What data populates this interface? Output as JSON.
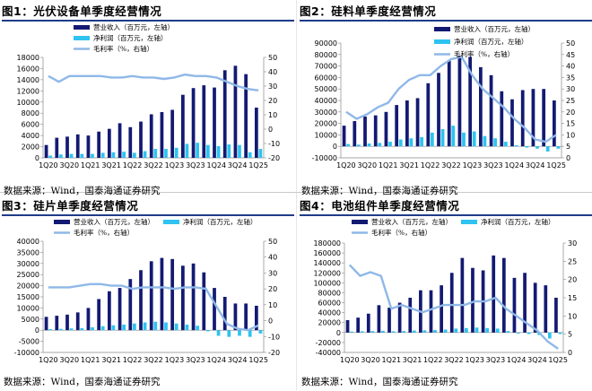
{
  "source_label": "数据来源：Wind，国泰海通证券研究",
  "colors": {
    "revenue": "#131a72",
    "profit": "#2ec3f0",
    "margin": "#8fb8e8"
  },
  "legend": {
    "revenue": "营业收入（百万元，左轴）",
    "profit": "净利润（百万元，左轴）",
    "margin": "毛利率（%，右轴）",
    "margin_short": "毛利率（%，右轴）"
  },
  "chart_data": [
    {
      "type": "bar",
      "title": "图1：光伏设备单季度经营情况",
      "legend_position": "top",
      "x_tick_labels": [
        "1Q20",
        "3Q20",
        "1Q21",
        "3Q21",
        "1Q22",
        "3Q22",
        "1Q23",
        "3Q23",
        "1Q24",
        "3Q24",
        "1Q25"
      ],
      "categories": [
        "1Q20",
        "2Q20",
        "3Q20",
        "4Q20",
        "1Q21",
        "2Q21",
        "3Q21",
        "4Q21",
        "1Q22",
        "2Q22",
        "3Q22",
        "4Q22",
        "1Q23",
        "2Q23",
        "3Q23",
        "4Q23",
        "1Q24",
        "2Q24",
        "3Q24",
        "4Q24",
        "1Q25"
      ],
      "ylim_left": [
        0,
        18000
      ],
      "yticks_left": [
        0,
        2000,
        4000,
        6000,
        8000,
        10000,
        12000,
        14000,
        16000,
        18000
      ],
      "ylim_right": [
        -20,
        50
      ],
      "yticks_right": [
        -20,
        -10,
        0,
        10,
        20,
        30,
        40,
        50
      ],
      "series": [
        {
          "name": "营业收入（百万元，左轴）",
          "axis": "left",
          "kind": "bar",
          "values": [
            2300,
            3600,
            3800,
            4200,
            4000,
            4700,
            5200,
            6200,
            5500,
            6500,
            7800,
            8200,
            8600,
            11300,
            12500,
            13000,
            12600,
            15700,
            16500,
            15000,
            9000
          ]
        },
        {
          "name": "净利润（百万元，左轴）",
          "axis": "left",
          "kind": "bar",
          "values": [
            400,
            600,
            700,
            700,
            700,
            900,
            1000,
            1100,
            900,
            1200,
            1600,
            1600,
            1800,
            2500,
            2700,
            2300,
            2100,
            2400,
            2300,
            1000,
            1600
          ]
        },
        {
          "name": "毛利率（%，右轴）",
          "axis": "right",
          "kind": "line",
          "values": [
            37,
            33,
            37,
            37,
            37,
            37,
            36,
            36,
            37,
            36,
            36,
            35,
            36,
            38,
            37,
            37,
            36,
            33,
            30,
            28,
            27
          ]
        }
      ]
    },
    {
      "type": "bar",
      "title": "图2：硅料单季度经营情况",
      "legend_position": "top-right",
      "x_tick_labels": [
        "1Q20",
        "3Q20",
        "1Q21",
        "3Q21",
        "1Q22",
        "3Q22",
        "1Q23",
        "3Q23",
        "1Q24",
        "3Q24",
        "1Q25"
      ],
      "categories": [
        "1Q20",
        "2Q20",
        "3Q20",
        "4Q20",
        "1Q21",
        "2Q21",
        "3Q21",
        "4Q21",
        "1Q22",
        "2Q22",
        "3Q22",
        "4Q22",
        "1Q23",
        "2Q23",
        "3Q23",
        "4Q23",
        "1Q24",
        "2Q24",
        "3Q24",
        "4Q24",
        "1Q25"
      ],
      "ylim_left": [
        -10000,
        90000
      ],
      "yticks_left": [
        -10000,
        0,
        10000,
        20000,
        30000,
        40000,
        50000,
        60000,
        70000,
        80000,
        90000
      ],
      "ylim_right": [
        0,
        50
      ],
      "yticks_right": [
        0,
        5,
        10,
        15,
        20,
        25,
        30,
        35,
        40,
        45,
        50
      ],
      "series": [
        {
          "name": "营业收入（百万元，左轴）",
          "axis": "left",
          "kind": "bar",
          "values": [
            18000,
            22000,
            26000,
            27000,
            30000,
            36000,
            40000,
            42000,
            55000,
            64000,
            75000,
            79000,
            78000,
            69000,
            62000,
            48000,
            41000,
            49000,
            50000,
            50000,
            40000
          ]
        },
        {
          "name": "净利润（百万元，左轴）",
          "axis": "left",
          "kind": "bar",
          "values": [
            2000,
            1500,
            2500,
            3000,
            4000,
            6000,
            7000,
            8000,
            12000,
            15000,
            18000,
            12000,
            13000,
            9000,
            7000,
            4000,
            1000,
            -1000,
            -2000,
            -4500,
            -2000
          ]
        },
        {
          "name": "毛利率（%，右轴）",
          "axis": "right",
          "kind": "line",
          "values": [
            20,
            17,
            19,
            22,
            24,
            30,
            34,
            36,
            36,
            40,
            43,
            44,
            36,
            30,
            26,
            22,
            17,
            13,
            8,
            7,
            10
          ]
        }
      ]
    },
    {
      "type": "bar",
      "title": "图3：硅片单季度经营情况",
      "legend_position": "top",
      "x_tick_labels": [
        "1Q20",
        "3Q20",
        "1Q21",
        "3Q21",
        "1Q22",
        "3Q22",
        "1Q23",
        "3Q23",
        "1Q24",
        "3Q24",
        "1Q25"
      ],
      "categories": [
        "1Q20",
        "2Q20",
        "3Q20",
        "4Q20",
        "1Q21",
        "2Q21",
        "3Q21",
        "4Q21",
        "1Q22",
        "2Q22",
        "3Q22",
        "4Q22",
        "1Q23",
        "2Q23",
        "3Q23",
        "4Q23",
        "1Q24",
        "2Q24",
        "3Q24",
        "4Q24",
        "1Q25"
      ],
      "ylim_left": [
        -10000,
        40000
      ],
      "yticks_left": [
        -10000,
        -5000,
        0,
        5000,
        10000,
        15000,
        20000,
        25000,
        30000,
        35000,
        40000
      ],
      "ylim_right": [
        -20,
        50
      ],
      "yticks_right": [
        -20,
        -10,
        0,
        10,
        20,
        30,
        40,
        50
      ],
      "series": [
        {
          "name": "营业收入（百万元，左轴）",
          "axis": "left",
          "kind": "bar",
          "values": [
            6000,
            6500,
            7000,
            8000,
            10000,
            14000,
            17500,
            19000,
            23000,
            27000,
            31000,
            32500,
            32000,
            29000,
            30000,
            26000,
            19000,
            15000,
            12000,
            12000,
            11000
          ]
        },
        {
          "name": "净利润（百万元，左轴）",
          "axis": "left",
          "kind": "bar",
          "values": [
            500,
            600,
            800,
            900,
            1300,
            1800,
            2200,
            2500,
            3000,
            3500,
            3800,
            3500,
            3000,
            2500,
            2000,
            -500,
            -2500,
            -3000,
            -2500,
            -3000,
            -1500
          ]
        },
        {
          "name": "毛利率（%，右轴）",
          "axis": "right",
          "kind": "line",
          "values": [
            21,
            21,
            21,
            22,
            23,
            23,
            22,
            22,
            20,
            21,
            21,
            21,
            20,
            21,
            21,
            20,
            9,
            -2,
            -5,
            -6,
            -3
          ]
        }
      ]
    },
    {
      "type": "bar",
      "title": "图4：电池组件单季度经营情况",
      "legend_position": "top",
      "x_tick_labels": [
        "1Q20",
        "3Q20",
        "1Q21",
        "3Q21",
        "1Q22",
        "3Q22",
        "1Q23",
        "3Q23",
        "1Q24",
        "3Q24",
        "1Q25"
      ],
      "categories": [
        "1Q20",
        "2Q20",
        "3Q20",
        "4Q20",
        "1Q21",
        "2Q21",
        "3Q21",
        "4Q21",
        "1Q22",
        "2Q22",
        "3Q22",
        "4Q22",
        "1Q23",
        "2Q23",
        "3Q23",
        "4Q23",
        "1Q24",
        "2Q24",
        "3Q24",
        "4Q24",
        "1Q25"
      ],
      "ylim_left": [
        -40000,
        180000
      ],
      "yticks_left": [
        -40000,
        -20000,
        0,
        20000,
        40000,
        60000,
        80000,
        100000,
        120000,
        140000,
        160000,
        180000
      ],
      "ylim_right": [
        0,
        30
      ],
      "yticks_right": [
        0,
        5,
        10,
        15,
        20,
        25,
        30
      ],
      "series": [
        {
          "name": "营业收入（百万元，左轴）",
          "axis": "left",
          "kind": "bar",
          "values": [
            25000,
            30000,
            38000,
            55000,
            50000,
            60000,
            70000,
            85000,
            85000,
            95000,
            120000,
            150000,
            130000,
            125000,
            155000,
            150000,
            110000,
            120000,
            100000,
            95000,
            70000
          ]
        },
        {
          "name": "净利润（百万元，左轴）",
          "axis": "left",
          "kind": "bar",
          "values": [
            2000,
            2500,
            3000,
            3500,
            2500,
            3000,
            4000,
            4500,
            5000,
            6000,
            8000,
            9000,
            10000,
            9000,
            8000,
            3000,
            -2000,
            -3000,
            -5000,
            -12000,
            -3000
          ]
        },
        {
          "name": "毛利率（%，右轴）",
          "axis": "right",
          "kind": "line",
          "values": [
            24,
            21,
            22,
            21,
            12,
            13,
            12,
            11,
            12,
            13,
            13,
            13,
            14,
            14,
            15,
            12,
            10,
            8,
            6,
            3,
            1
          ]
        }
      ]
    }
  ]
}
